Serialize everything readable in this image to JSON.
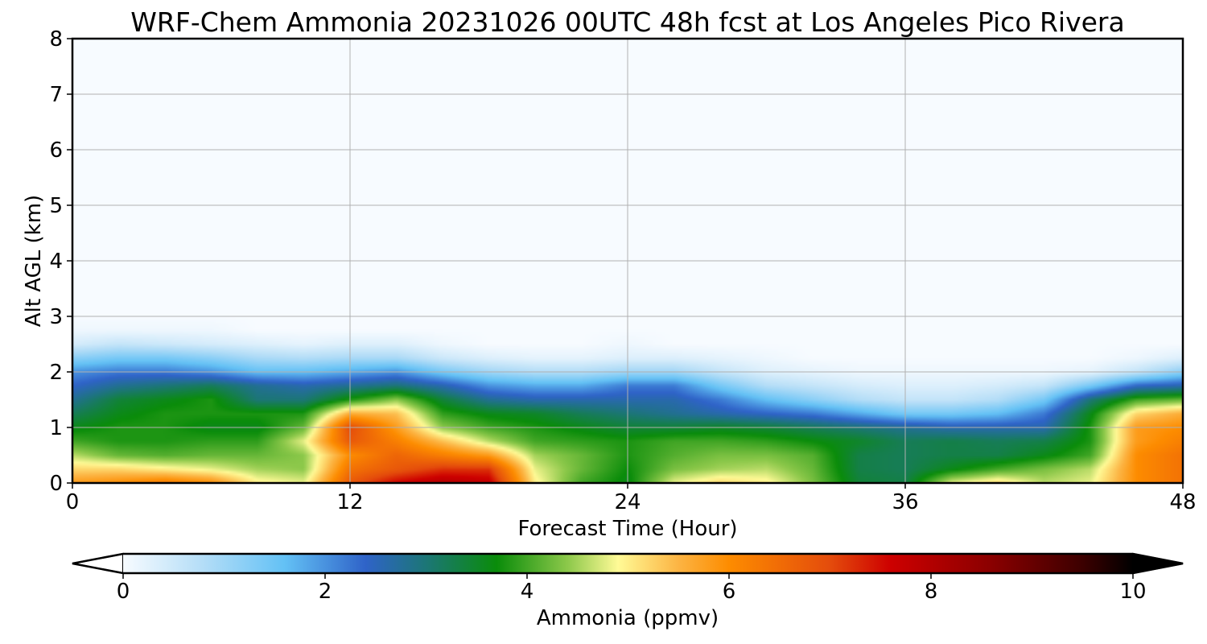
{
  "chart_data": {
    "type": "heatmap",
    "title": "WRF-Chem Ammonia  20231026 00UTC 48h fcst at Los Angeles Pico Rivera",
    "xlabel": "Forecast Time (Hour)",
    "ylabel": "Alt AGL (km)",
    "xlim": [
      0,
      48
    ],
    "ylim": [
      0,
      8
    ],
    "xticks": [
      "0",
      "12",
      "24",
      "36",
      "48"
    ],
    "yticks": [
      "0",
      "1",
      "2",
      "3",
      "4",
      "5",
      "6",
      "7",
      "8"
    ],
    "grid": true,
    "x": [
      0,
      2,
      4,
      6,
      8,
      10,
      12,
      14,
      16,
      18,
      20,
      22,
      24,
      26,
      28,
      30,
      32,
      34,
      36,
      38,
      40,
      42,
      44,
      46,
      48
    ],
    "y": [
      0,
      0.25,
      0.5,
      0.75,
      1.0,
      1.25,
      1.5,
      1.75,
      2.0,
      2.25,
      2.5,
      2.75,
      3.0
    ],
    "values": [
      [
        5.8,
        6.0,
        6.3,
        6.0,
        5.0,
        4.8,
        6.8,
        7.6,
        8.0,
        7.8,
        5.0,
        4.0,
        3.6,
        4.8,
        5.2,
        5.0,
        4.3,
        3.4,
        3.3,
        4.8,
        5.2,
        4.6,
        4.8,
        6.0,
        6.4
      ],
      [
        5.2,
        5.2,
        5.0,
        4.8,
        4.5,
        4.4,
        6.4,
        6.8,
        7.2,
        7.2,
        4.8,
        4.2,
        3.7,
        4.3,
        4.5,
        4.6,
        4.2,
        3.3,
        3.2,
        3.6,
        4.0,
        4.3,
        4.6,
        6.0,
        6.4
      ],
      [
        4.6,
        4.2,
        4.1,
        4.2,
        4.2,
        4.4,
        6.0,
        6.6,
        6.2,
        5.8,
        4.5,
        4.2,
        3.8,
        4.1,
        4.3,
        4.3,
        4.1,
        3.3,
        3.2,
        3.3,
        3.3,
        3.6,
        4.0,
        6.0,
        6.4
      ],
      [
        4.0,
        3.8,
        3.8,
        3.9,
        3.9,
        4.8,
        6.8,
        6.2,
        5.4,
        4.6,
        4.0,
        3.9,
        3.8,
        4.0,
        4.0,
        3.9,
        3.7,
        3.5,
        3.2,
        3.3,
        3.2,
        3.3,
        3.8,
        5.8,
        6.2
      ],
      [
        3.6,
        3.8,
        3.8,
        3.6,
        3.6,
        4.2,
        7.0,
        5.8,
        4.4,
        4.0,
        3.8,
        3.6,
        3.4,
        3.4,
        3.5,
        3.4,
        3.2,
        3.0,
        2.8,
        2.6,
        2.6,
        2.6,
        3.8,
        5.8,
        6.0
      ],
      [
        3.2,
        3.6,
        3.8,
        3.8,
        3.8,
        3.8,
        5.6,
        5.4,
        3.9,
        3.6,
        3.5,
        3.2,
        3.0,
        2.8,
        2.6,
        2.4,
        2.2,
        1.8,
        1.4,
        1.4,
        1.6,
        2.2,
        3.6,
        5.2,
        5.6
      ],
      [
        2.8,
        3.4,
        3.6,
        3.8,
        3.0,
        3.0,
        3.8,
        4.4,
        3.4,
        2.8,
        2.6,
        2.6,
        2.6,
        2.6,
        2.2,
        1.6,
        1.2,
        0.8,
        0.6,
        0.6,
        0.8,
        1.4,
        3.0,
        4.0,
        4.2
      ],
      [
        2.4,
        2.8,
        3.0,
        3.2,
        2.8,
        2.6,
        2.8,
        3.0,
        2.6,
        2.0,
        1.8,
        1.8,
        2.2,
        2.2,
        1.4,
        0.8,
        0.6,
        0.4,
        0.3,
        0.3,
        0.4,
        0.6,
        1.4,
        2.4,
        2.6
      ],
      [
        2.0,
        2.2,
        2.2,
        2.0,
        1.6,
        1.6,
        1.8,
        2.0,
        1.4,
        1.0,
        0.8,
        0.8,
        1.0,
        1.0,
        0.6,
        0.3,
        0.2,
        0.1,
        0.1,
        0.1,
        0.1,
        0.1,
        0.2,
        0.6,
        1.2
      ],
      [
        1.2,
        1.4,
        1.4,
        1.2,
        0.9,
        0.8,
        0.9,
        0.9,
        0.5,
        0.3,
        0.2,
        0.2,
        0.3,
        0.3,
        0.2,
        0.1,
        0.0,
        0.0,
        0.0,
        0.0,
        0.0,
        0.0,
        0.0,
        0.1,
        0.3
      ],
      [
        0.4,
        0.6,
        0.5,
        0.4,
        0.3,
        0.2,
        0.3,
        0.3,
        0.1,
        0.0,
        0.0,
        0.0,
        0.1,
        0.0,
        0.0,
        0.0,
        0.0,
        0.0,
        0.0,
        0.0,
        0.0,
        0.0,
        0.0,
        0.0,
        0.0
      ],
      [
        0.1,
        0.1,
        0.1,
        0.1,
        0.0,
        0.0,
        0.0,
        0.0,
        0.0,
        0.0,
        0.0,
        0.0,
        0.0,
        0.0,
        0.0,
        0.0,
        0.0,
        0.0,
        0.0,
        0.0,
        0.0,
        0.0,
        0.0,
        0.0,
        0.0
      ],
      [
        0.0,
        0.0,
        0.0,
        0.0,
        0.0,
        0.0,
        0.0,
        0.0,
        0.0,
        0.0,
        0.0,
        0.0,
        0.0,
        0.0,
        0.0,
        0.0,
        0.0,
        0.0,
        0.0,
        0.0,
        0.0,
        0.0,
        0.0,
        0.0,
        0.0
      ]
    ],
    "background_value": 0,
    "colorbar": {
      "label": "Ammonia  (ppmv)",
      "min": 0,
      "max": 10,
      "ticks": [
        "0",
        "2",
        "4",
        "6",
        "8",
        "10"
      ],
      "extend": "both",
      "under_color": "#ffffff",
      "over_color": "#000000",
      "colors": [
        {
          "v": 0.0,
          "c": "#f7fbff"
        },
        {
          "v": 0.8,
          "c": "#b3ddf7"
        },
        {
          "v": 1.6,
          "c": "#63c1f5"
        },
        {
          "v": 2.4,
          "c": "#2f63c8"
        },
        {
          "v": 3.0,
          "c": "#1c7676"
        },
        {
          "v": 3.7,
          "c": "#0a8c0a"
        },
        {
          "v": 4.4,
          "c": "#8cc84a"
        },
        {
          "v": 4.9,
          "c": "#fffa96"
        },
        {
          "v": 5.5,
          "c": "#fcb443"
        },
        {
          "v": 6.0,
          "c": "#fd8c00"
        },
        {
          "v": 7.0,
          "c": "#e44c0c"
        },
        {
          "v": 7.6,
          "c": "#cd0000"
        },
        {
          "v": 8.6,
          "c": "#8a0000"
        },
        {
          "v": 9.5,
          "c": "#3c0000"
        },
        {
          "v": 10.0,
          "c": "#000000"
        }
      ]
    }
  }
}
